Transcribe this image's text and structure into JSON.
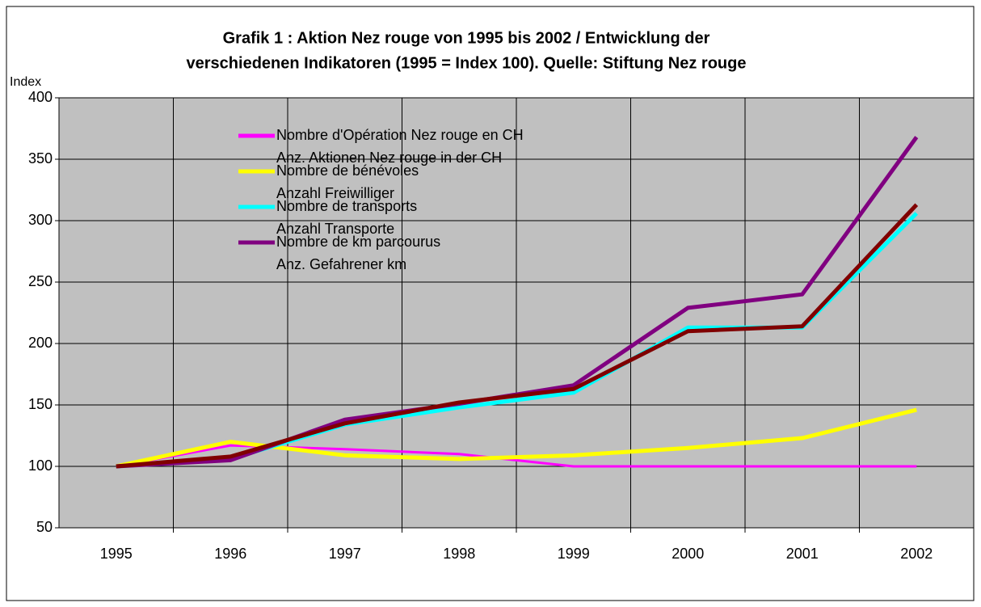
{
  "chart_data": {
    "type": "line",
    "title": [
      "Grafik 1 : Aktion Nez rouge von 1995 bis 2002 / Entwicklung der",
      "verschiedenen Indikatoren (1995 = Index 100). Quelle: Stiftung Nez rouge"
    ],
    "y_label": "Index",
    "categories": [
      "1995",
      "1996",
      "1997",
      "1998",
      "1999",
      "2000",
      "2001",
      "2002"
    ],
    "ylim": [
      50,
      400
    ],
    "yticks": [
      50,
      100,
      150,
      200,
      250,
      300,
      350,
      400
    ],
    "grid": true,
    "series": [
      {
        "name": [
          "Nombre d'Opération Nez rouge en CH",
          "Anz. Aktionen Nez rouge in der CH"
        ],
        "color": "#ff00ff",
        "values": [
          100,
          117,
          114,
          110,
          100,
          100,
          100,
          100
        ]
      },
      {
        "name": [
          "Nombre de bénévoles",
          "Anzahl Freiwilliger"
        ],
        "color": "#ffff00",
        "values": [
          100,
          120,
          109,
          106,
          109,
          115,
          123,
          146
        ]
      },
      {
        "name": [
          "Nombre de transports",
          "Anzahl Transporte"
        ],
        "color": "#00ffff",
        "values": [
          100,
          106,
          134,
          148,
          160,
          213,
          213,
          306
        ]
      },
      {
        "name": [
          "Nombre de km parcourus",
          "Anz. Gefahrener km"
        ],
        "color": "#800080",
        "values": [
          100,
          105,
          138,
          151,
          166,
          229,
          240,
          368
        ]
      },
      {
        "color": "#800000",
        "values": [
          100,
          108,
          135,
          152,
          163,
          210,
          214,
          313
        ]
      }
    ]
  }
}
